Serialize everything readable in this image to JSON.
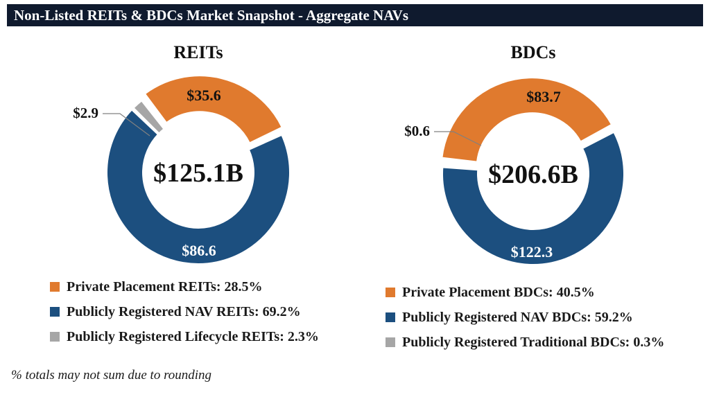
{
  "header": {
    "title": "Non-Listed REITs & BDCs Market Snapshot - Aggregate NAVs"
  },
  "colors": {
    "orange": "#e07a2e",
    "blue": "#1c4f7f",
    "gray": "#a6a6a6",
    "header_bg": "#0f1a2e"
  },
  "chart_data": [
    {
      "type": "pie",
      "donut": true,
      "title": "REITs",
      "center_label": "$125.1B",
      "slices": [
        {
          "label": "Private Placement REITs: 28.5%",
          "value": 35.6,
          "display": "$35.6",
          "color": "#e07a2e",
          "exploded": true
        },
        {
          "label": "Publicly Registered NAV REITs: 69.2%",
          "value": 86.6,
          "display": "$86.6",
          "color": "#1c4f7f"
        },
        {
          "label": "Publicly Registered Lifecycle REITs: 2.3%",
          "value": 2.9,
          "display": "$2.9",
          "color": "#a6a6a6",
          "leader": true
        }
      ],
      "legend_placement": "bottom"
    },
    {
      "type": "pie",
      "donut": true,
      "title": "BDCs",
      "center_label": "$206.6B",
      "slices": [
        {
          "label": "Private Placement BDCs: 40.5%",
          "value": 83.7,
          "display": "$83.7",
          "color": "#e07a2e",
          "exploded": true
        },
        {
          "label": "Publicly Registered NAV BDCs: 59.2%",
          "value": 122.3,
          "display": "$122.3",
          "color": "#1c4f7f"
        },
        {
          "label": "Publicly Registered Traditional BDCs: 0.3%",
          "value": 0.6,
          "display": "$0.6",
          "color": "#a6a6a6",
          "leader": true
        }
      ],
      "legend_placement": "bottom"
    }
  ],
  "footnote": "% totals may not sum due to rounding"
}
